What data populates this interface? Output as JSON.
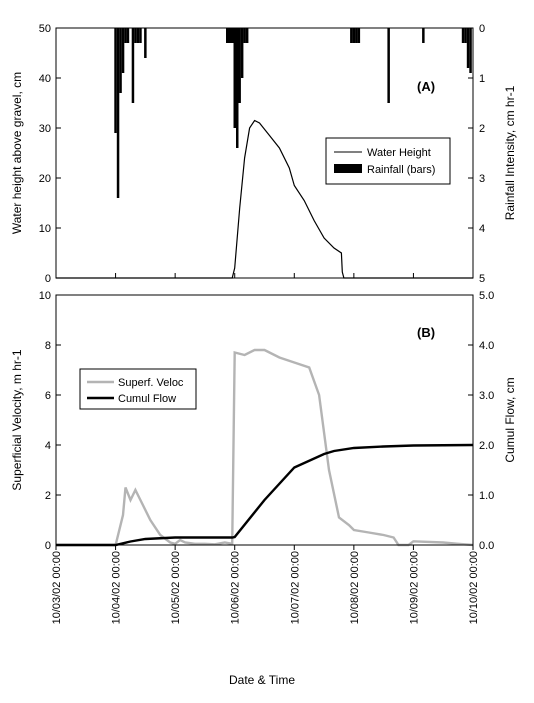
{
  "chart_data": [
    {
      "panel": "(A)",
      "type": "line",
      "xlabel": "",
      "ylabel": "Water height above gravel, cm",
      "ylabel_right": "Rainfall Intensity, cm hr-1",
      "xlim": [
        "10/03/02 00:00",
        "10/10/02 00:00"
      ],
      "ylim": [
        0,
        50
      ],
      "yticks": [
        0,
        10,
        20,
        30,
        40,
        50
      ],
      "ylim_right": [
        5,
        0
      ],
      "yticks_right": [
        0,
        1,
        2,
        3,
        4,
        5
      ],
      "right_axis_inverted": true,
      "grid": false,
      "legend_position": "center-right",
      "legend": [
        "Water Height",
        "Rainfall (bars)"
      ],
      "series": [
        {
          "name": "Water Height",
          "style": "line",
          "color": "#000000",
          "axis": "left",
          "x": [
            "10/03/02 00:00",
            "10/05/02 23:00",
            "10/06/02 00:00",
            "10/06/02 02:00",
            "10/06/02 04:00",
            "10/06/02 06:00",
            "10/06/02 08:00",
            "10/06/02 10:00",
            "10/06/02 14:00",
            "10/06/02 18:00",
            "10/06/02 22:00",
            "10/07/02 00:00",
            "10/07/02 04:00",
            "10/07/02 08:00",
            "10/07/02 12:00",
            "10/07/02 16:00",
            "10/07/02 19:00",
            "10/07/02 19:20",
            "10/07/02 20:00",
            "10/10/02 00:00"
          ],
          "y": [
            0,
            0,
            2,
            14,
            24,
            30,
            31.5,
            31,
            28.5,
            26,
            22,
            18.5,
            15.5,
            11.5,
            8,
            6,
            5,
            1.2,
            0,
            0
          ]
        },
        {
          "name": "Rainfall (bars)",
          "style": "bars",
          "color": "#000000",
          "axis": "right",
          "x": [
            "10/04/02 00:00",
            "10/04/02 01:00",
            "10/04/02 02:00",
            "10/04/02 03:00",
            "10/04/02 04:00",
            "10/04/02 05:00",
            "10/04/02 07:00",
            "10/04/02 08:00",
            "10/04/02 09:00",
            "10/04/02 10:00",
            "10/04/02 12:00",
            "10/05/02 21:00",
            "10/05/02 22:00",
            "10/05/02 23:00",
            "10/06/02 00:00",
            "10/06/02 01:00",
            "10/06/02 02:00",
            "10/06/02 03:00",
            "10/06/02 04:00",
            "10/06/02 05:00",
            "10/07/02 23:00",
            "10/08/02 00:00",
            "10/08/02 01:00",
            "10/08/02 02:00",
            "10/08/02 14:00",
            "10/09/02 04:00",
            "10/09/02 20:00",
            "10/09/02 21:00",
            "10/09/02 22:00",
            "10/09/02 23:00"
          ],
          "y": [
            2.1,
            3.4,
            1.3,
            0.9,
            0.3,
            0.3,
            1.5,
            0.3,
            0.3,
            0.3,
            0.6,
            0.3,
            0.3,
            0.3,
            2.0,
            2.4,
            1.5,
            1.0,
            0.3,
            0.3,
            0.3,
            0.3,
            0.3,
            0.3,
            1.5,
            0.3,
            0.3,
            0.3,
            0.8,
            0.9
          ]
        }
      ]
    },
    {
      "panel": "(B)",
      "type": "line",
      "xlabel": "Date & Time",
      "ylabel": "Superficial Velocity, m hr-1",
      "ylabel_right": "Cumul Flow, cm",
      "xlim": [
        "10/03/02 00:00",
        "10/10/02 00:00"
      ],
      "xticks": [
        "10/03/02 00:00",
        "10/04/02 00:00",
        "10/05/02 00:00",
        "10/06/02 00:00",
        "10/07/02 00:00",
        "10/08/02 00:00",
        "10/09/02 00:00",
        "10/10/02 00:00"
      ],
      "ylim": [
        0,
        10
      ],
      "yticks": [
        0,
        2,
        4,
        6,
        8,
        10
      ],
      "ylim_right": [
        0,
        5
      ],
      "yticks_right": [
        "0.0",
        "1.0",
        "2.0",
        "3.0",
        "4.0",
        "5.0"
      ],
      "grid": false,
      "legend_position": "upper-left",
      "legend": [
        "Superf. Veloc",
        "Cumul Flow"
      ],
      "series": [
        {
          "name": "Superf. Veloc",
          "style": "line",
          "color": "#b4b4b4",
          "axis": "left",
          "x": [
            "10/03/02 00:00",
            "10/04/02 00:00",
            "10/04/02 03:00",
            "10/04/02 04:00",
            "10/04/02 06:00",
            "10/04/02 08:00",
            "10/04/02 10:00",
            "10/04/02 14:00",
            "10/04/02 18:00",
            "10/04/02 22:00",
            "10/05/02 00:00",
            "10/05/02 02:00",
            "10/05/02 04:00",
            "10/05/02 08:00",
            "10/05/02 12:00",
            "10/05/02 16:00",
            "10/05/02 20:00",
            "10/05/02 23:00",
            "10/06/02 00:00",
            "10/06/02 04:00",
            "10/06/02 08:00",
            "10/06/02 12:00",
            "10/06/02 18:00",
            "10/07/02 00:00",
            "10/07/02 06:00",
            "10/07/02 10:00",
            "10/07/02 14:00",
            "10/07/02 18:00",
            "10/07/02 22:00",
            "10/08/02 00:00",
            "10/08/02 06:00",
            "10/08/02 12:00",
            "10/08/02 16:00",
            "10/08/02 18:00",
            "10/08/02 22:00",
            "10/09/02 00:00",
            "10/09/02 12:00",
            "10/09/02 18:00",
            "10/10/02 00:00"
          ],
          "y": [
            0,
            0,
            1.2,
            2.3,
            1.8,
            2.2,
            1.8,
            1.0,
            0.4,
            0.1,
            0.05,
            0.2,
            0.1,
            0.05,
            0.05,
            0.03,
            0.1,
            0.05,
            7.7,
            7.6,
            7.8,
            7.8,
            7.5,
            7.3,
            7.1,
            6.0,
            3.0,
            1.1,
            0.8,
            0.6,
            0.5,
            0.4,
            0.3,
            0,
            0,
            0.15,
            0.1,
            0.05,
            0
          ]
        },
        {
          "name": "Cumul Flow",
          "style": "line",
          "color": "#000000",
          "axis": "right",
          "x": [
            "10/03/02 00:00",
            "10/04/02 00:00",
            "10/04/02 06:00",
            "10/04/02 12:00",
            "10/05/02 00:00",
            "10/05/02 23:00",
            "10/06/02 00:00",
            "10/06/02 12:00",
            "10/07/02 00:00",
            "10/07/02 12:00",
            "10/07/02 16:00",
            "10/08/02 00:00",
            "10/08/02 12:00",
            "10/09/02 00:00",
            "10/10/02 00:00"
          ],
          "y": [
            0,
            0,
            0.07,
            0.12,
            0.15,
            0.15,
            0.16,
            0.9,
            1.55,
            1.82,
            1.88,
            1.94,
            1.97,
            1.99,
            2.0
          ]
        }
      ]
    }
  ]
}
